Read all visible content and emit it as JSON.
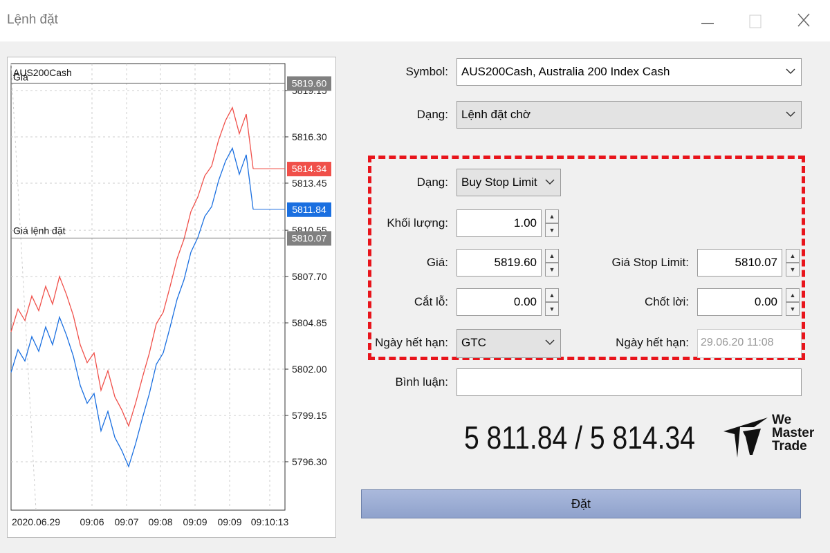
{
  "window": {
    "title": "Lệnh đặt"
  },
  "chart": {
    "symbol": "AUS200Cash",
    "order_line_label": "Giá",
    "stop_line_label": "Giá lệnh đặt",
    "ylim": [
      5793.32,
      5820.81
    ],
    "yticks": [
      {
        "value": 5796.3,
        "label": "5796.30"
      },
      5799.15,
      {
        "value": 5802.0,
        "label": "5802.00"
      },
      5804.85,
      {
        "value": 5807.7,
        "label": "5807.70"
      },
      5810.55,
      5813.45,
      {
        "value": 5816.3,
        "label": "5816.30"
      },
      5819.15
    ],
    "x_labels": [
      "2020.06.29",
      "09:06",
      "09:07",
      "09:08",
      "09:09",
      "09:09",
      "09:10:13"
    ],
    "series": [
      {
        "color": "#f0504a",
        "values": [
          5804.3,
          5805.7,
          5805.0,
          5806.5,
          5805.6,
          5807.1,
          5806.0,
          5807.7,
          5806.6,
          5805.3,
          5803.5,
          5802.4,
          5803.0,
          5800.7,
          5801.9,
          5800.3,
          5799.5,
          5798.5,
          5799.9,
          5801.5,
          5803.0,
          5804.8,
          5805.5,
          5807.1,
          5808.8,
          5810.0,
          5811.7,
          5812.6,
          5813.9,
          5814.5,
          5816.1,
          5817.3,
          5818.1,
          5816.5,
          5817.7,
          5814.34
        ]
      },
      {
        "color": "#1a6fe0",
        "values": [
          5801.8,
          5803.2,
          5802.5,
          5804.0,
          5803.1,
          5804.6,
          5803.5,
          5805.2,
          5804.1,
          5802.8,
          5801.0,
          5799.9,
          5800.5,
          5798.2,
          5799.4,
          5797.8,
          5797.0,
          5796.0,
          5797.4,
          5799.0,
          5800.5,
          5802.3,
          5803.0,
          5804.6,
          5806.3,
          5807.5,
          5809.2,
          5810.1,
          5811.4,
          5812.0,
          5813.6,
          5814.8,
          5815.6,
          5814.0,
          5815.2,
          5811.84
        ]
      }
    ],
    "price_tags": [
      {
        "value": 5819.6,
        "label": "5819.60",
        "color": "#808080"
      },
      {
        "value": 5814.34,
        "label": "5814.34",
        "color": "#f0504a"
      },
      {
        "value": 5811.84,
        "label": "5811.84",
        "color": "#1a6fe0"
      },
      {
        "value": 5810.07,
        "label": "5810.07",
        "color": "#808080"
      }
    ]
  },
  "form": {
    "symbol_label": "Symbol:",
    "symbol_value": "AUS200Cash, Australia 200 Index Cash",
    "type_label": "Dạng:",
    "type_value": "Lệnh đặt chờ",
    "order_type_label": "Dạng:",
    "order_type_value": "Buy Stop Limit",
    "volume_label": "Khối lượng:",
    "volume_value": "1.00",
    "price_label": "Giá:",
    "price_value": "5819.60",
    "stop_limit_label": "Giá Stop Limit:",
    "stop_limit_value": "5810.07",
    "sl_label": "Cắt lỗ:",
    "sl_value": "0.00",
    "tp_label": "Chốt lời:",
    "tp_value": "0.00",
    "expiry_label": "Ngày hết hạn:",
    "expiry_value": "GTC",
    "expiry_date_label": "Ngày hết hạn:",
    "expiry_date_value": "29.06.20 11:08",
    "comment_label": "Bình luận:"
  },
  "quote": "5 811.84 / 5 814.34",
  "submit": "Đặt",
  "logo": {
    "line1": "We",
    "line2": "Master",
    "line3": "Trade"
  }
}
